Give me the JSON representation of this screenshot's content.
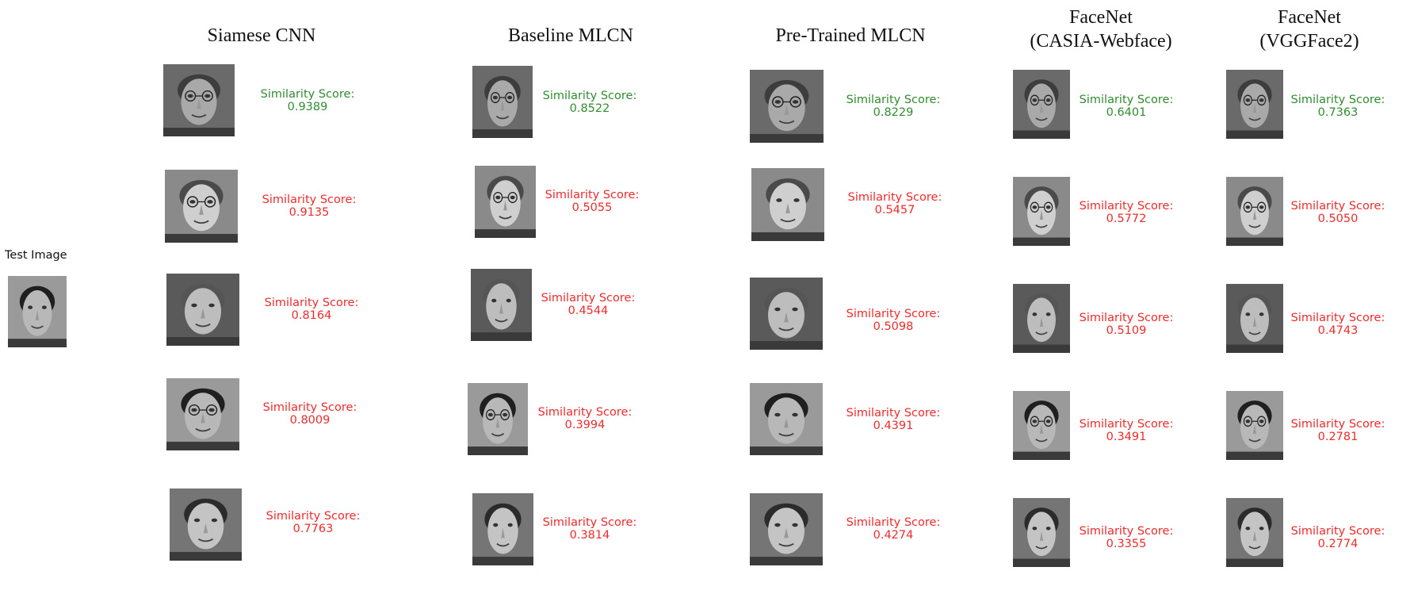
{
  "test_image": {
    "label": "Test Image"
  },
  "colors": {
    "match": "#2f8c2f",
    "nomatch": "#ee2b2b"
  },
  "columns": [
    {
      "title_lines": [
        "Siamese CNN"
      ],
      "results": [
        {
          "label": "Similarity Score:",
          "value": "0.9389",
          "match": true
        },
        {
          "label": "Similarity Score:",
          "value": "0.9135",
          "match": false
        },
        {
          "label": "Similarity Score:",
          "value": "0.8164",
          "match": false
        },
        {
          "label": "Similarity Score:",
          "value": "0.8009",
          "match": false
        },
        {
          "label": "Similarity Score:",
          "value": "0.7763",
          "match": false
        }
      ]
    },
    {
      "title_lines": [
        "Baseline MLCN"
      ],
      "results": [
        {
          "label": "Similarity Score:",
          "value": "0.8522",
          "match": true
        },
        {
          "label": "Similarity Score:",
          "value": "0.5055",
          "match": false
        },
        {
          "label": "Similarity Score:",
          "value": "0.4544",
          "match": false
        },
        {
          "label": "Similarity Score:",
          "value": "0.3994",
          "match": false
        },
        {
          "label": "Similarity Score:",
          "value": "0.3814",
          "match": false
        }
      ]
    },
    {
      "title_lines": [
        "Pre-Trained MLCN"
      ],
      "results": [
        {
          "label": "Similarity Score:",
          "value": "0.8229",
          "match": true
        },
        {
          "label": "Similarity Score:",
          "value": "0.5457",
          "match": false
        },
        {
          "label": "Similarity Score:",
          "value": "0.5098",
          "match": false
        },
        {
          "label": "Similarity Score:",
          "value": "0.4391",
          "match": false
        },
        {
          "label": "Similarity Score:",
          "value": "0.4274",
          "match": false
        }
      ]
    },
    {
      "title_lines": [
        "FaceNet",
        "(CASIA-Webface)"
      ],
      "results": [
        {
          "label": "Similarity Score:",
          "value": "0.6401",
          "match": true
        },
        {
          "label": "Similarity Score:",
          "value": "0.5772",
          "match": false
        },
        {
          "label": "Similarity Score:",
          "value": "0.5109",
          "match": false
        },
        {
          "label": "Similarity Score:",
          "value": "0.3491",
          "match": false
        },
        {
          "label": "Similarity Score:",
          "value": "0.3355",
          "match": false
        }
      ]
    },
    {
      "title_lines": [
        "FaceNet",
        "(VGGFace2)"
      ],
      "results": [
        {
          "label": "Similarity Score:",
          "value": "0.7363",
          "match": true
        },
        {
          "label": "Similarity Score:",
          "value": "0.5050",
          "match": false
        },
        {
          "label": "Similarity Score:",
          "value": "0.4743",
          "match": false
        },
        {
          "label": "Similarity Score:",
          "value": "0.2781",
          "match": false
        },
        {
          "label": "Similarity Score:",
          "value": "0.2774",
          "match": false
        }
      ]
    }
  ]
}
